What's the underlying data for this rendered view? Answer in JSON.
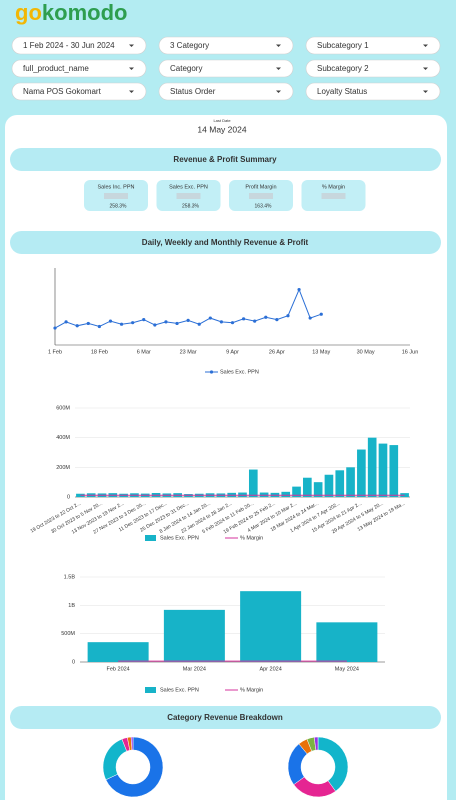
{
  "header": {
    "logo": [
      "go",
      "komodo"
    ]
  },
  "filters": [
    "1 Feb 2024 - 30 Jun 2024",
    "3 Category",
    "Subcategory 1",
    "full_product_name",
    "Category",
    "Subcategory 2",
    "Nama POS Gokomart",
    "Status Order",
    "Loyalty Status"
  ],
  "last_date": {
    "label": "Last Date",
    "value": "14 May 2024"
  },
  "sections": [
    "Revenue & Profit Summary",
    "Daily, Weekly and Monthly Revenue & Profit",
    "Category Revenue Breakdown"
  ],
  "kpis": [
    {
      "label": "Sales Inc. PPN",
      "change": "258.3%"
    },
    {
      "label": "Sales Exc. PPN",
      "change": "258.3%"
    },
    {
      "label": "Profit Margin",
      "change": "163.4%"
    },
    {
      "label": "% Margin"
    }
  ],
  "chart_data": [
    {
      "type": "line",
      "categories": [
        "1 Feb",
        null,
        null,
        null,
        "18 Feb",
        null,
        null,
        null,
        "6 Mar",
        null,
        null,
        null,
        "23 Mar",
        null,
        null,
        null,
        "9 Apr",
        null,
        null,
        null,
        "26 Apr",
        null,
        null,
        null,
        "13 May",
        null,
        null,
        null,
        "30 May",
        null,
        null,
        null,
        "16 Jun"
      ],
      "series": [
        {
          "name": "Sales Exc. PPN",
          "color": "#2b6fd6",
          "values": [
            22,
            30,
            25,
            28,
            24,
            31,
            27,
            29,
            33,
            26,
            30,
            28,
            32,
            27,
            35,
            30,
            29,
            34,
            31,
            36,
            33,
            38,
            72,
            35,
            40,
            null,
            null,
            null,
            null,
            null,
            null,
            null,
            null
          ]
        }
      ],
      "ylim": [
        0,
        100
      ]
    },
    {
      "type": "bar",
      "categories": [
        "19 Oct 2023 to 22 Oct 2...",
        null,
        "30 Oct 2023 to 5 Nov 20...",
        null,
        "13 Nov 2023 to 19 Nov 2...",
        null,
        "27 Nov 2023 to 3 Dec 20...",
        null,
        "11 Dec 2023 to 17 Dec...",
        null,
        "25 Dec 2023 to 31 Dec...",
        null,
        "8 Jan 2024 to 14 Jan 20...",
        null,
        "22 Jan 2024 to 28 Jan 2...",
        null,
        "5 Feb 2024 to 11 Feb 20...",
        null,
        "19 Feb 2024 to 25 Feb 2...",
        null,
        "4 Mar 2024 to 10 Mar 2...",
        null,
        "18 Mar 2024 to 24 Mar...",
        null,
        "1 Apr 2024 to 7 Apr 202...",
        null,
        "15 Apr 2024 to 21 Apr 2...",
        null,
        "29 Apr 2024 to 5 May 20...",
        null,
        "13 May 2024 to 19 Ma..."
      ],
      "series": [
        {
          "name": "Sales Exc. PPN",
          "color": "#17b3c8",
          "values": [
            22000000,
            25000000,
            24000000,
            26000000,
            22000000,
            25000000,
            23000000,
            27000000,
            24000000,
            26000000,
            20000000,
            22000000,
            25000000,
            24000000,
            28000000,
            30000000,
            185000000,
            30000000,
            28000000,
            35000000,
            70000000,
            130000000,
            100000000,
            150000000,
            180000000,
            200000000,
            320000000,
            400000000,
            360000000,
            350000000,
            26100000
          ]
        },
        {
          "name": "% Margin",
          "color": "#d6339c",
          "axis": "y2",
          "values": [
            2,
            2,
            2,
            2,
            2,
            2,
            2,
            2,
            2,
            2,
            2,
            2,
            2,
            2,
            2,
            2,
            2,
            2,
            2,
            2,
            2,
            2,
            2,
            2,
            2,
            2,
            2,
            2,
            2,
            2,
            2
          ]
        }
      ],
      "ylim": [
        0,
        600000000
      ],
      "yticks": [
        0,
        {
          "value": 200000000,
          "label": "200M"
        },
        {
          "value": 400000000,
          "label": "400M"
        },
        {
          "value": 600000000,
          "label": "600M"
        }
      ],
      "y2lim": [
        0,
        100
      ],
      "grid": true
    },
    {
      "type": "bar",
      "categories": [
        "Feb 2024",
        "Mar 2024",
        "Apr 2024",
        "May 2024"
      ],
      "series": [
        {
          "name": "Sales Exc. PPN",
          "color": "#17b3c8",
          "values": [
            350000000,
            920000000,
            1250000000,
            700000000
          ]
        },
        {
          "name": "% Margin",
          "color": "#d6339c",
          "axis": "y2",
          "values": [
            1,
            1,
            1,
            1
          ]
        }
      ],
      "ylim": [
        0,
        1500000000
      ],
      "yticks": [
        0,
        {
          "value": 500000000,
          "label": "500M"
        },
        {
          "value": 1000000000,
          "label": "1B"
        },
        {
          "value": 1500000000,
          "label": "1.5B"
        }
      ],
      "y2lim": [
        0,
        100
      ],
      "grid": true
    },
    {
      "type": "pie",
      "values": [
        68,
        26,
        3,
        2,
        1
      ],
      "colors": [
        "#1a73e8",
        "#12b5cb",
        "#e52592",
        "#e8710a",
        "#9334e6"
      ]
    },
    {
      "type": "pie",
      "values": [
        40,
        25,
        24,
        5,
        4,
        2
      ],
      "colors": [
        "#12b5cb",
        "#e52592",
        "#1a73e8",
        "#e8710a",
        "#7cb342",
        "#9334e6"
      ]
    }
  ]
}
